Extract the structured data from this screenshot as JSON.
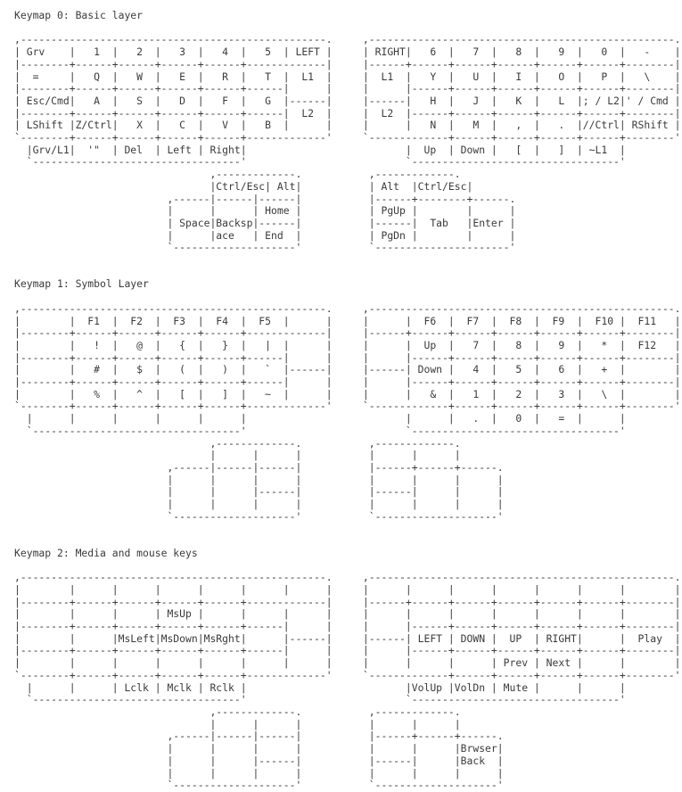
{
  "page": {
    "background": "#ffffff",
    "text_color": "#3a3a3a"
  },
  "keymaps": [
    {
      "title": "Keymap 0: Basic layer",
      "art": [
        ",--------------------------------------------------.     ,--------------------------------------------------.",
        "| Grv    |   1  |   2  |   3  |   4  |   5  | LEFT |     | RIGHT|   6  |   7  |   8  |   9  |   0  |   -    |",
        "|--------+------+------+------+------+-------------|     |------+------+------+------+------+------+--------|",
        "|  =     |   Q  |   W  |   E  |   R  |   T  |  L1  |     |  L1  |   Y  |   U  |   I  |   O  |   P  |   \\    |",
        "|--------+------+------+------+------+------|      |     |      |------+------+------+------+------+--------|",
        "| Esc/Cmd|   A  |   S  |   D  |   F  |   G  |------|     |------|   H  |   J  |   K  |   L  |; / L2|' / Cmd |",
        "|--------+------+------+------+------+------|  L2  |     |  L2  |------+------+------+------+------+--------|",
        "| LShift |Z/Ctrl|   X  |   C  |   V  |   B  |      |     |      |   N  |   M  |   ,  |   .  |//Ctrl| RShift |",
        "`--------+------+------+------+------+-------------'     `-------------+------+------+------+------+--------'",
        "  |Grv/L1|  '\"  | Del  | Left | Right|                          |  Up  | Down |   [  |   ]  | ~L1  |",
        "  `----------------------------------'                          `----------------------------------'",
        "                                ,-------------.           ,-------------.",
        "                                |Ctrl/Esc| Alt|           | Alt  |Ctrl/Esc|",
        "                         ,------|------|------|           |------+--------+------.",
        "                         |      |      | Home |           | PgUp |        |      |",
        "                         | Space|Backsp|------|           |------|  Tab   |Enter |",
        "                         |      |ace   | End  |           | PgDn |        |      |",
        "                         `--------------------'           `----------------------'"
      ]
    },
    {
      "title": "Keymap 1: Symbol Layer",
      "art": [
        ",--------------------------------------------------.     ,--------------------------------------------------.",
        "|        |  F1  |  F2  |  F3  |  F4  |  F5  |      |     |      |  F6  |  F7  |  F8  |  F9  |  F10 |  F11   |",
        "|--------+------+------+------+------+-------------|     |------+------+------+------+------+------+--------|",
        "|        |   !  |   @  |   {  |   }  |   |  |      |     |      |  Up  |   7  |   8  |   9  |   *  |  F12   |",
        "|--------+------+------+------+------+------|      |     |      |------+------+------+------+------+--------|",
        "|        |   #  |   $  |   (  |   )  |   `  |------|     |------| Down |   4  |   5  |   6  |   +  |        |",
        "|--------+------+------+------+------+------|      |     |      |------+------+------+------+------+--------|",
        "|        |   %  |   ^  |   [  |   ]  |   ~  |      |     |      |   &  |   1  |   2  |   3  |   \\  |        |",
        "`--------+------+------+------+------+-------------'     `-------------+------+------+------+------+--------'",
        "  |      |      |      |      |      |                          |      |   .  |   0  |   =  |      |",
        "  `----------------------------------'                          `----------------------------------'",
        "                                ,-------------.           ,-------------.",
        "                                |      |      |           |      |      |",
        "                         ,------|------|------|           |------+------+------.",
        "                         |      |      |      |           |      |      |      |",
        "                         |      |      |------|           |------|      |      |",
        "                         |      |      |      |           |      |      |      |",
        "                         `--------------------'           `--------------------'"
      ]
    },
    {
      "title": "Keymap 2: Media and mouse keys",
      "art": [
        ",--------------------------------------------------.     ,--------------------------------------------------.",
        "|        |      |      |      |      |      |      |     |      |      |      |      |      |      |        |",
        "|--------+------+------+------+------+-------------|     |------+------+------+------+------+------+--------|",
        "|        |      |      | MsUp |      |      |      |     |      |      |      |      |      |      |        |",
        "|--------+------+------+------+------+------|      |     |      |------+------+------+------+------+--------|",
        "|        |      |MsLeft|MsDown|MsRght|      |------|     |------| LEFT | DOWN |  UP  | RIGHT|      |  Play  |",
        "|--------+------+------+------+------+------|      |     |      |------+------+------+------+------+--------|",
        "|        |      |      |      |      |      |      |     |      |      |      | Prev | Next |      |        |",
        "`--------+------+------+------+------+-------------'     `-------------+------+------+------+------+--------'",
        "  |      |      | Lclk | Mclk | Rclk |                          |VolUp |VolDn | Mute |      |      |",
        "  `----------------------------------'                          `----------------------------------'",
        "                                ,-------------.           ,-------------.",
        "                                |      |      |           |      |      |",
        "                         ,------|------|------|           |------+------+------.",
        "                         |      |      |      |           |      |      |Brwser|",
        "                         |      |      |------|           |------|      |Back  |",
        "                         |      |      |      |           |      |      |      |",
        "                         `--------------------'           `--------------------'"
      ]
    }
  ]
}
